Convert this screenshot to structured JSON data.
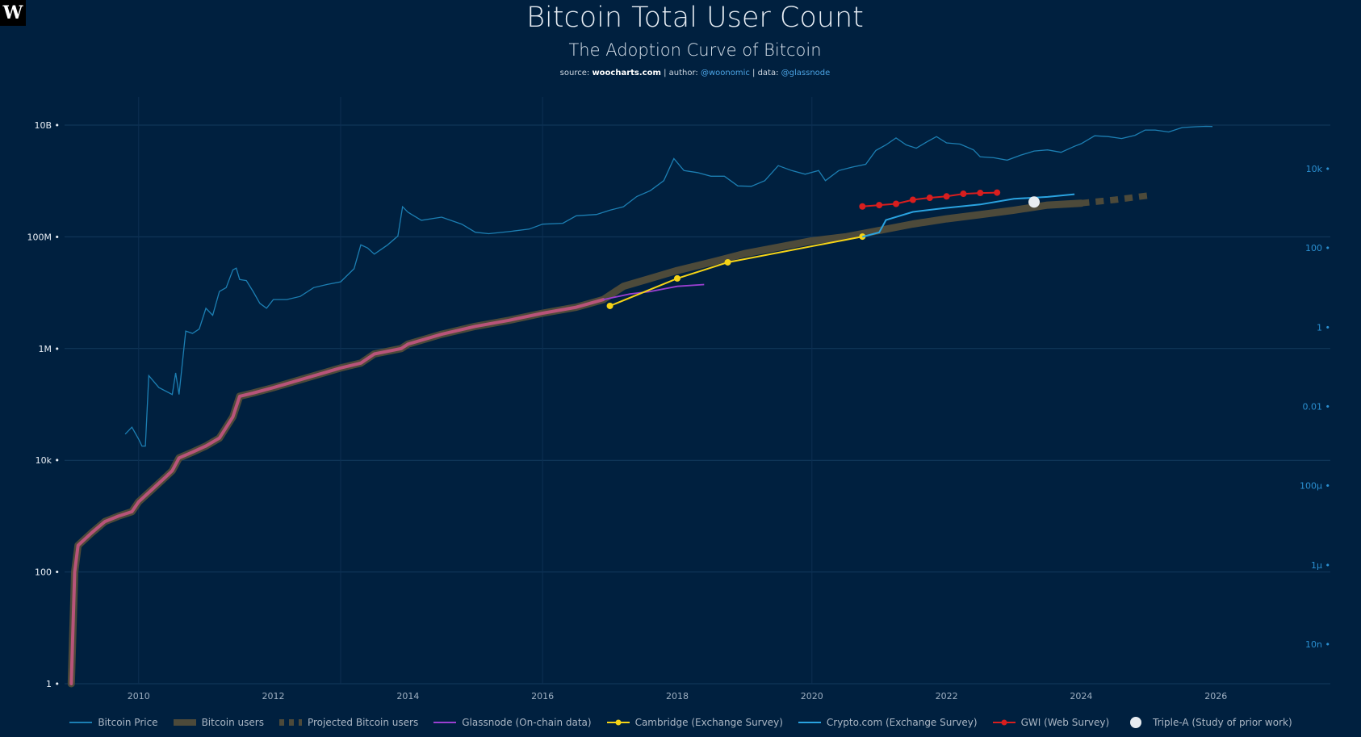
{
  "header": {
    "logo_letter": "W",
    "title": "Bitcoin Total User Count",
    "subtitle": "The Adoption Curve of Bitcoin",
    "source_prefix": "source: ",
    "source_site": "woocharts.com",
    "author_prefix": " | author: ",
    "author": "@woonomic",
    "data_prefix": " | data: ",
    "data_source": "@glassnode"
  },
  "colors": {
    "background": "#00203f",
    "grid": "#123a5e",
    "price": "#1c7fb3",
    "bitcoin_users_fill": "#4d4a3a",
    "bitcoin_users_early": "#b8547a",
    "glassnode": "#9b3fd1",
    "cambridge": "#f5d316",
    "cryptocom": "#2aa3e0",
    "gwi": "#d81e1e",
    "triplea": "#e8ecf0",
    "left_axis_text": "#e8eef5",
    "right_axis_text": "#2a8fd0"
  },
  "chart_data": {
    "type": "line",
    "x_ticks": [
      "2010",
      "2012",
      "2014",
      "2016",
      "2018",
      "2020",
      "2022",
      "2024",
      "2026"
    ],
    "xlim": [
      2008.9,
      2027.7
    ],
    "y_left": {
      "scale": "log",
      "ticks": [
        1,
        100,
        10000,
        1000000,
        100000000,
        10000000000
      ],
      "tick_labels": [
        "1",
        "100",
        "10k",
        "1M",
        "100M",
        "10B"
      ],
      "ylim": [
        1,
        10000000000
      ]
    },
    "y_right": {
      "scale": "log",
      "ticks": [
        1e-08,
        1e-06,
        0.0001,
        0.01,
        1,
        100,
        10000
      ],
      "tick_labels": [
        "10n",
        "1μ",
        "100μ",
        "0.01",
        "1",
        "100",
        "10k"
      ],
      "ylim": [
        1e-09,
        100000
      ]
    },
    "legend_position": "bottom",
    "series": [
      {
        "name": "Bitcoin Price",
        "axis": "right",
        "points": [
          [
            2009.8,
            0.002
          ],
          [
            2009.9,
            0.003
          ],
          [
            2010.0,
            0.0015
          ],
          [
            2010.05,
            0.001
          ],
          [
            2010.1,
            0.001
          ],
          [
            2010.15,
            0.06
          ],
          [
            2010.3,
            0.03
          ],
          [
            2010.5,
            0.02
          ],
          [
            2010.55,
            0.07
          ],
          [
            2010.6,
            0.02
          ],
          [
            2010.7,
            0.8
          ],
          [
            2010.8,
            0.7
          ],
          [
            2010.9,
            0.9
          ],
          [
            2011.0,
            3
          ],
          [
            2011.1,
            2
          ],
          [
            2011.2,
            8
          ],
          [
            2011.3,
            10
          ],
          [
            2011.4,
            28
          ],
          [
            2011.45,
            31
          ],
          [
            2011.5,
            16
          ],
          [
            2011.6,
            15
          ],
          [
            2011.7,
            8
          ],
          [
            2011.8,
            4
          ],
          [
            2011.9,
            3
          ],
          [
            2012.0,
            5
          ],
          [
            2012.2,
            5
          ],
          [
            2012.4,
            6
          ],
          [
            2012.6,
            10
          ],
          [
            2012.8,
            12
          ],
          [
            2013.0,
            14
          ],
          [
            2013.2,
            30
          ],
          [
            2013.3,
            120
          ],
          [
            2013.4,
            100
          ],
          [
            2013.5,
            70
          ],
          [
            2013.7,
            120
          ],
          [
            2013.85,
            200
          ],
          [
            2013.92,
            1100
          ],
          [
            2014.0,
            800
          ],
          [
            2014.2,
            500
          ],
          [
            2014.5,
            600
          ],
          [
            2014.8,
            400
          ],
          [
            2015.0,
            250
          ],
          [
            2015.2,
            230
          ],
          [
            2015.5,
            260
          ],
          [
            2015.8,
            300
          ],
          [
            2016.0,
            400
          ],
          [
            2016.3,
            420
          ],
          [
            2016.5,
            650
          ],
          [
            2016.8,
            700
          ],
          [
            2017.0,
            900
          ],
          [
            2017.2,
            1100
          ],
          [
            2017.4,
            2000
          ],
          [
            2017.6,
            2800
          ],
          [
            2017.8,
            5000
          ],
          [
            2017.95,
            18000
          ],
          [
            2018.1,
            9000
          ],
          [
            2018.3,
            8000
          ],
          [
            2018.5,
            6500
          ],
          [
            2018.7,
            6500
          ],
          [
            2018.9,
            3700
          ],
          [
            2019.1,
            3600
          ],
          [
            2019.3,
            5000
          ],
          [
            2019.5,
            12000
          ],
          [
            2019.7,
            9000
          ],
          [
            2019.9,
            7300
          ],
          [
            2020.1,
            9000
          ],
          [
            2020.2,
            5000
          ],
          [
            2020.4,
            9000
          ],
          [
            2020.6,
            11000
          ],
          [
            2020.8,
            13000
          ],
          [
            2020.95,
            29000
          ],
          [
            2021.1,
            40000
          ],
          [
            2021.25,
            60000
          ],
          [
            2021.4,
            40000
          ],
          [
            2021.55,
            33000
          ],
          [
            2021.7,
            47000
          ],
          [
            2021.85,
            65000
          ],
          [
            2022.0,
            45000
          ],
          [
            2022.2,
            42000
          ],
          [
            2022.4,
            30000
          ],
          [
            2022.5,
            20000
          ],
          [
            2022.7,
            19000
          ],
          [
            2022.9,
            16500
          ],
          [
            2023.1,
            22000
          ],
          [
            2023.3,
            28000
          ],
          [
            2023.5,
            30000
          ],
          [
            2023.7,
            26000
          ],
          [
            2023.9,
            37000
          ],
          [
            2024.0,
            43000
          ],
          [
            2024.2,
            68000
          ],
          [
            2024.4,
            65000
          ],
          [
            2024.6,
            58000
          ],
          [
            2024.8,
            70000
          ],
          [
            2024.95,
            95000
          ],
          [
            2025.1,
            95000
          ],
          [
            2025.3,
            85000
          ],
          [
            2025.5,
            110000
          ],
          [
            2025.7,
            115000
          ],
          [
            2025.85,
            118000
          ],
          [
            2025.95,
            117000
          ]
        ]
      },
      {
        "name": "Bitcoin users",
        "axis": "left",
        "points": [
          [
            2009.0,
            1
          ],
          [
            2009.05,
            100
          ],
          [
            2009.1,
            300
          ],
          [
            2009.3,
            500
          ],
          [
            2009.5,
            800
          ],
          [
            2009.7,
            1000
          ],
          [
            2009.9,
            1200
          ],
          [
            2010.0,
            1800
          ],
          [
            2010.2,
            3000
          ],
          [
            2010.4,
            5000
          ],
          [
            2010.5,
            6500
          ],
          [
            2010.6,
            11000
          ],
          [
            2010.8,
            14000
          ],
          [
            2011.0,
            18000
          ],
          [
            2011.2,
            25000
          ],
          [
            2011.4,
            60000
          ],
          [
            2011.5,
            140000
          ],
          [
            2011.7,
            160000
          ],
          [
            2012.0,
            200000
          ],
          [
            2012.5,
            300000
          ],
          [
            2013.0,
            450000
          ],
          [
            2013.3,
            550000
          ],
          [
            2013.5,
            800000
          ],
          [
            2013.9,
            1000000
          ],
          [
            2014.0,
            1200000
          ],
          [
            2014.5,
            1800000
          ],
          [
            2015.0,
            2500000
          ],
          [
            2015.5,
            3200000
          ],
          [
            2016.0,
            4300000
          ],
          [
            2016.5,
            5500000
          ],
          [
            2016.9,
            7500000
          ],
          [
            2017.2,
            13000000
          ],
          [
            2017.6,
            18000000
          ],
          [
            2018.0,
            25000000
          ],
          [
            2018.5,
            35000000
          ],
          [
            2019.0,
            50000000
          ],
          [
            2019.5,
            65000000
          ],
          [
            2020.0,
            85000000
          ],
          [
            2020.5,
            100000000
          ],
          [
            2021.0,
            130000000
          ],
          [
            2021.5,
            170000000
          ],
          [
            2022.0,
            210000000
          ],
          [
            2022.5,
            250000000
          ],
          [
            2023.0,
            300000000
          ],
          [
            2023.5,
            370000000
          ],
          [
            2024.0,
            400000000
          ]
        ]
      },
      {
        "name": "Projected Bitcoin users",
        "axis": "left",
        "points": [
          [
            2024.0,
            400000000
          ],
          [
            2024.5,
            460000000
          ],
          [
            2025.0,
            550000000
          ]
        ]
      },
      {
        "name": "Glassnode (On-chain data)",
        "axis": "left",
        "points": [
          [
            2016.9,
            7500000
          ],
          [
            2017.3,
            9500000
          ],
          [
            2017.6,
            10500000
          ],
          [
            2018.0,
            13000000
          ],
          [
            2018.4,
            14000000
          ]
        ]
      },
      {
        "name": "Cambridge (Exchange Survey)",
        "axis": "left",
        "points": [
          [
            2017.0,
            5800000
          ],
          [
            2018.0,
            18000000
          ],
          [
            2018.75,
            35000000
          ],
          [
            2020.75,
            101000000
          ]
        ]
      },
      {
        "name": "Crypto.com (Exchange Survey)",
        "axis": "left",
        "points": [
          [
            2020.75,
            100000000
          ],
          [
            2021.0,
            120000000
          ],
          [
            2021.1,
            200000000
          ],
          [
            2021.5,
            280000000
          ],
          [
            2022.0,
            330000000
          ],
          [
            2022.5,
            380000000
          ],
          [
            2023.0,
            480000000
          ],
          [
            2023.5,
            520000000
          ],
          [
            2023.9,
            580000000
          ]
        ]
      },
      {
        "name": "GWI (Web Survey)",
        "axis": "left",
        "points": [
          [
            2020.75,
            350000000
          ],
          [
            2021.0,
            370000000
          ],
          [
            2021.25,
            390000000
          ],
          [
            2021.5,
            460000000
          ],
          [
            2021.75,
            500000000
          ],
          [
            2022.0,
            530000000
          ],
          [
            2022.25,
            590000000
          ],
          [
            2022.5,
            610000000
          ],
          [
            2022.75,
            620000000
          ]
        ]
      },
      {
        "name": "Triple-A (Study of prior work)",
        "axis": "left",
        "points": [
          [
            2023.3,
            420000000
          ]
        ]
      }
    ]
  }
}
